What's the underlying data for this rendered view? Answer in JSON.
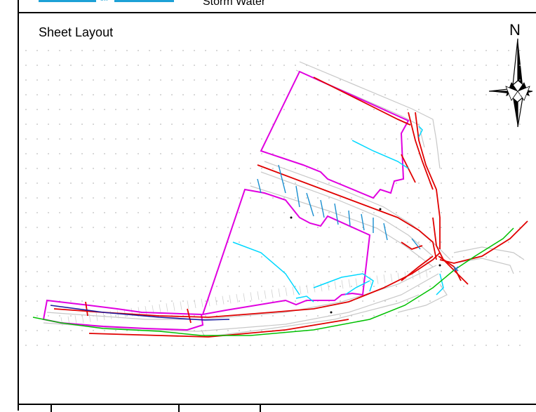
{
  "header": {
    "logo_text": "SW",
    "subtitle": "Storm Water"
  },
  "sheet": {
    "title": "Sheet Layout",
    "north_label": "N"
  },
  "icons": {
    "compass": "north-arrow-icon"
  },
  "colors": {
    "sheet_boundary": "#e000e0",
    "sewer_line": "#e00000",
    "storm_line": "#00d8ff",
    "storm_lateral": "#1a8fd0",
    "water_line": "#00c000",
    "main_line": "#1a1aa0",
    "linework": "#c8c8c8"
  }
}
